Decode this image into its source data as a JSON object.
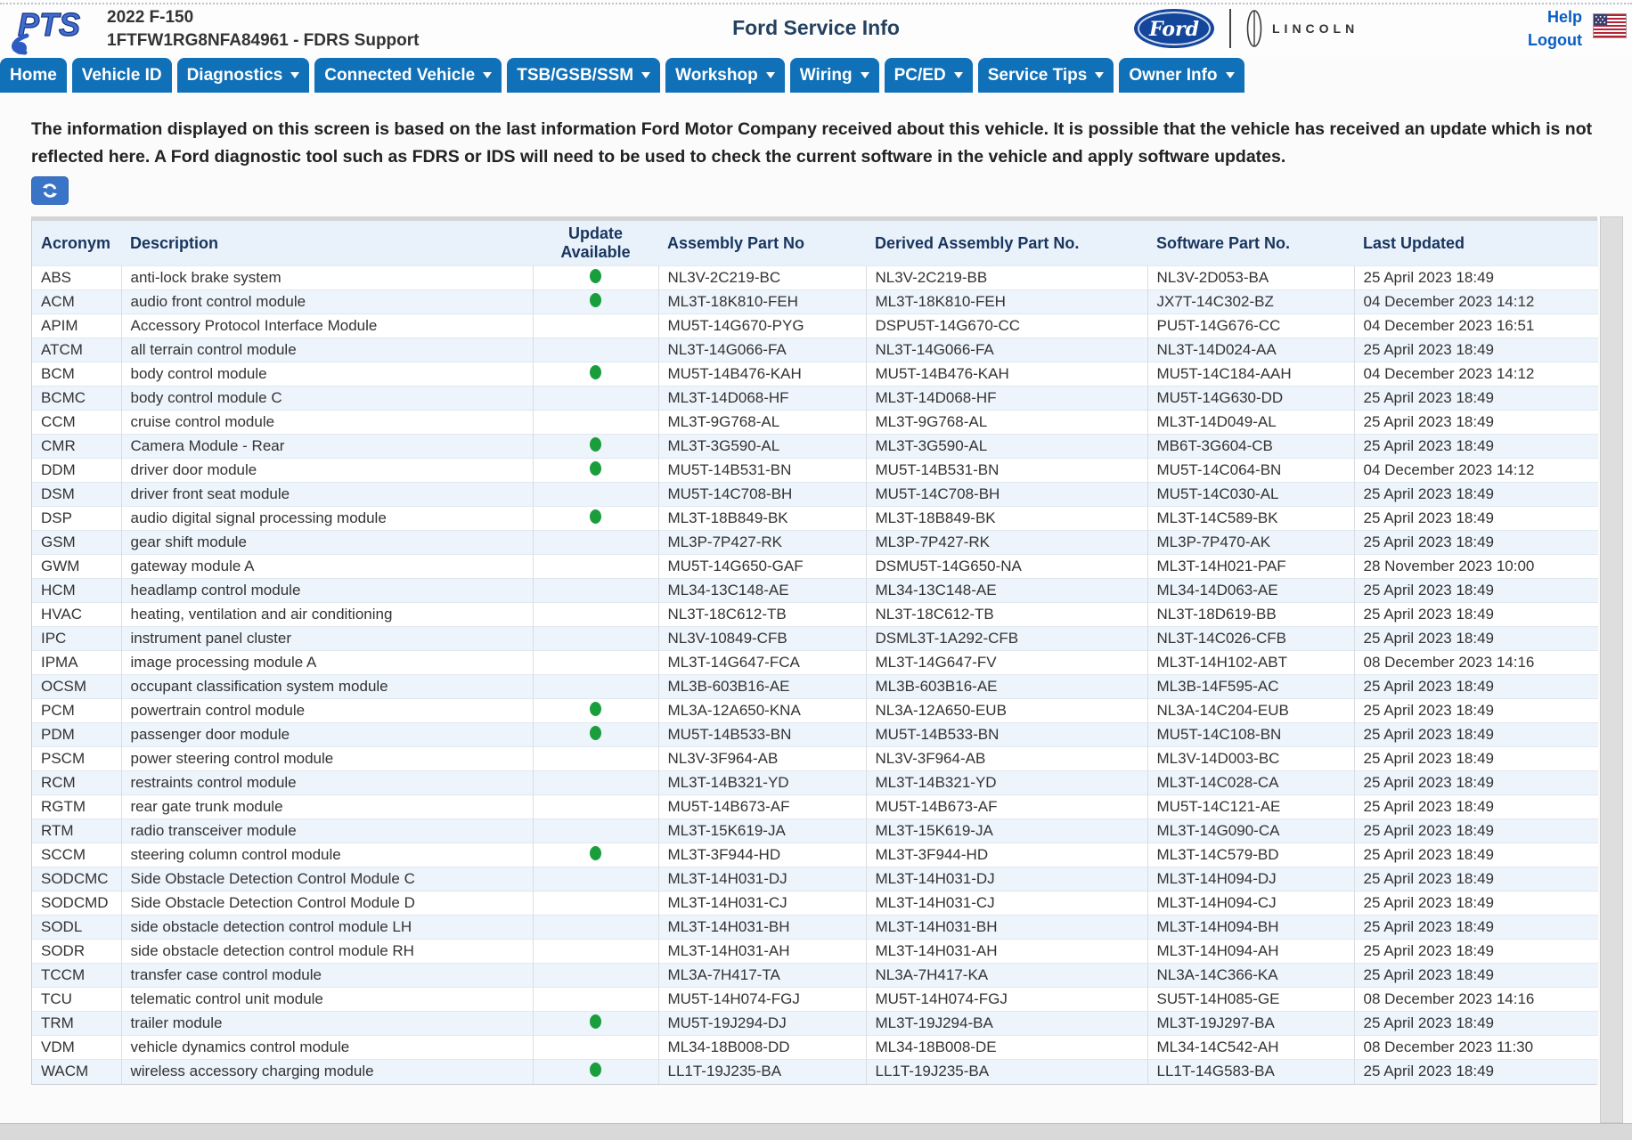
{
  "header": {
    "logo_text": "PTS",
    "vehicle_line1": "2022 F-150",
    "vehicle_line2": "1FTFW1RG8NFA84961 - FDRS Support",
    "title": "Ford Service Info",
    "ford_logo_text": "Ford",
    "lincoln_logo_text": "LINCOLN",
    "help_label": "Help",
    "logout_label": "Logout"
  },
  "nav": {
    "items": [
      {
        "label": "Home",
        "has_caret": false
      },
      {
        "label": "Vehicle ID",
        "has_caret": false
      },
      {
        "label": "Diagnostics",
        "has_caret": true
      },
      {
        "label": "Connected Vehicle",
        "has_caret": true
      },
      {
        "label": "TSB/GSB/SSM",
        "has_caret": true
      },
      {
        "label": "Workshop",
        "has_caret": true
      },
      {
        "label": "Wiring",
        "has_caret": true
      },
      {
        "label": "PC/ED",
        "has_caret": true
      },
      {
        "label": "Service Tips",
        "has_caret": true
      },
      {
        "label": "Owner Info",
        "has_caret": true
      }
    ]
  },
  "notice": {
    "text": "The information displayed on this screen is based on the last information Ford Motor Company received about this vehicle. It is possible that the vehicle has received an update which is not reflected here. A Ford diagnostic tool such as FDRS or IDS will need to be used to check the current software in the vehicle and apply software updates."
  },
  "refresh_button": {
    "icon": "refresh-icon"
  },
  "colors": {
    "nav_blue": "#1070b8",
    "link_blue": "#0a5dc2",
    "header_navy": "#18355e",
    "table_header_bg": "#e9f2fb",
    "row_alt_bg": "#edf4fb",
    "update_green": "#1a9e3c",
    "refresh_blue": "#3a74c6"
  },
  "table": {
    "columns": [
      "Acronym",
      "Description",
      "Update Available",
      "Assembly Part No",
      "Derived Assembly Part No.",
      "Software Part No.",
      "Last Updated"
    ],
    "rows": [
      {
        "acronym": "ABS",
        "description": "anti-lock brake system",
        "update_available": true,
        "assembly": "NL3V-2C219-BC",
        "derived": "NL3V-2C219-BB",
        "software": "NL3V-2D053-BA",
        "last_updated": "25 April 2023 18:49"
      },
      {
        "acronym": "ACM",
        "description": "audio front control module",
        "update_available": true,
        "assembly": "ML3T-18K810-FEH",
        "derived": "ML3T-18K810-FEH",
        "software": "JX7T-14C302-BZ",
        "last_updated": "04 December 2023 14:12"
      },
      {
        "acronym": "APIM",
        "description": "Accessory Protocol Interface Module",
        "update_available": false,
        "assembly": "MU5T-14G670-PYG",
        "derived": "DSPU5T-14G670-CC",
        "software": "PU5T-14G676-CC",
        "last_updated": "04 December 2023 16:51"
      },
      {
        "acronym": "ATCM",
        "description": "all terrain control module",
        "update_available": false,
        "assembly": "NL3T-14G066-FA",
        "derived": "NL3T-14G066-FA",
        "software": "NL3T-14D024-AA",
        "last_updated": "25 April 2023 18:49"
      },
      {
        "acronym": "BCM",
        "description": "body control module",
        "update_available": true,
        "assembly": "MU5T-14B476-KAH",
        "derived": "MU5T-14B476-KAH",
        "software": "MU5T-14C184-AAH",
        "last_updated": "04 December 2023 14:12"
      },
      {
        "acronym": "BCMC",
        "description": "body control module C",
        "update_available": false,
        "assembly": "ML3T-14D068-HF",
        "derived": "ML3T-14D068-HF",
        "software": "MU5T-14G630-DD",
        "last_updated": "25 April 2023 18:49"
      },
      {
        "acronym": "CCM",
        "description": "cruise control module",
        "update_available": false,
        "assembly": "ML3T-9G768-AL",
        "derived": "ML3T-9G768-AL",
        "software": "ML3T-14D049-AL",
        "last_updated": "25 April 2023 18:49"
      },
      {
        "acronym": "CMR",
        "description": "Camera Module - Rear",
        "update_available": true,
        "assembly": "ML3T-3G590-AL",
        "derived": "ML3T-3G590-AL",
        "software": "MB6T-3G604-CB",
        "last_updated": "25 April 2023 18:49"
      },
      {
        "acronym": "DDM",
        "description": "driver door module",
        "update_available": true,
        "assembly": "MU5T-14B531-BN",
        "derived": "MU5T-14B531-BN",
        "software": "MU5T-14C064-BN",
        "last_updated": "04 December 2023 14:12"
      },
      {
        "acronym": "DSM",
        "description": "driver front seat module",
        "update_available": false,
        "assembly": "MU5T-14C708-BH",
        "derived": "MU5T-14C708-BH",
        "software": "MU5T-14C030-AL",
        "last_updated": "25 April 2023 18:49"
      },
      {
        "acronym": "DSP",
        "description": "audio digital signal processing module",
        "update_available": true,
        "assembly": "ML3T-18B849-BK",
        "derived": "ML3T-18B849-BK",
        "software": "ML3T-14C589-BK",
        "last_updated": "25 April 2023 18:49"
      },
      {
        "acronym": "GSM",
        "description": "gear shift module",
        "update_available": false,
        "assembly": "ML3P-7P427-RK",
        "derived": "ML3P-7P427-RK",
        "software": "ML3P-7P470-AK",
        "last_updated": "25 April 2023 18:49"
      },
      {
        "acronym": "GWM",
        "description": "gateway module A",
        "update_available": false,
        "assembly": "MU5T-14G650-GAF",
        "derived": "DSMU5T-14G650-NA",
        "software": "ML3T-14H021-PAF",
        "last_updated": "28 November 2023 10:00"
      },
      {
        "acronym": "HCM",
        "description": "headlamp control module",
        "update_available": false,
        "assembly": "ML34-13C148-AE",
        "derived": "ML34-13C148-AE",
        "software": "ML34-14D063-AE",
        "last_updated": "25 April 2023 18:49"
      },
      {
        "acronym": "HVAC",
        "description": "heating, ventilation and air conditioning",
        "update_available": false,
        "assembly": "NL3T-18C612-TB",
        "derived": "NL3T-18C612-TB",
        "software": "NL3T-18D619-BB",
        "last_updated": "25 April 2023 18:49"
      },
      {
        "acronym": "IPC",
        "description": "instrument panel cluster",
        "update_available": false,
        "assembly": "NL3V-10849-CFB",
        "derived": "DSML3T-1A292-CFB",
        "software": "NL3T-14C026-CFB",
        "last_updated": "25 April 2023 18:49"
      },
      {
        "acronym": "IPMA",
        "description": "image processing module A",
        "update_available": false,
        "assembly": "ML3T-14G647-FCA",
        "derived": "ML3T-14G647-FV",
        "software": "ML3T-14H102-ABT",
        "last_updated": "08 December 2023 14:16"
      },
      {
        "acronym": "OCSM",
        "description": "occupant classification system module",
        "update_available": false,
        "assembly": "ML3B-603B16-AE",
        "derived": "ML3B-603B16-AE",
        "software": "ML3B-14F595-AC",
        "last_updated": "25 April 2023 18:49"
      },
      {
        "acronym": "PCM",
        "description": "powertrain control module",
        "update_available": true,
        "assembly": "ML3A-12A650-KNA",
        "derived": "NL3A-12A650-EUB",
        "software": "NL3A-14C204-EUB",
        "last_updated": "25 April 2023 18:49"
      },
      {
        "acronym": "PDM",
        "description": "passenger door module",
        "update_available": true,
        "assembly": "MU5T-14B533-BN",
        "derived": "MU5T-14B533-BN",
        "software": "MU5T-14C108-BN",
        "last_updated": "25 April 2023 18:49"
      },
      {
        "acronym": "PSCM",
        "description": "power steering control module",
        "update_available": false,
        "assembly": "NL3V-3F964-AB",
        "derived": "NL3V-3F964-AB",
        "software": "ML3V-14D003-BC",
        "last_updated": "25 April 2023 18:49"
      },
      {
        "acronym": "RCM",
        "description": "restraints control module",
        "update_available": false,
        "assembly": "ML3T-14B321-YD",
        "derived": "ML3T-14B321-YD",
        "software": "ML3T-14C028-CA",
        "last_updated": "25 April 2023 18:49"
      },
      {
        "acronym": "RGTM",
        "description": "rear gate trunk module",
        "update_available": false,
        "assembly": "MU5T-14B673-AF",
        "derived": "MU5T-14B673-AF",
        "software": "MU5T-14C121-AE",
        "last_updated": "25 April 2023 18:49"
      },
      {
        "acronym": "RTM",
        "description": "radio transceiver module",
        "update_available": false,
        "assembly": "ML3T-15K619-JA",
        "derived": "ML3T-15K619-JA",
        "software": "ML3T-14G090-CA",
        "last_updated": "25 April 2023 18:49"
      },
      {
        "acronym": "SCCM",
        "description": "steering column control module",
        "update_available": true,
        "assembly": "ML3T-3F944-HD",
        "derived": "ML3T-3F944-HD",
        "software": "ML3T-14C579-BD",
        "last_updated": "25 April 2023 18:49"
      },
      {
        "acronym": "SODCMC",
        "description": "Side Obstacle Detection Control Module C",
        "update_available": false,
        "assembly": "ML3T-14H031-DJ",
        "derived": "ML3T-14H031-DJ",
        "software": "ML3T-14H094-DJ",
        "last_updated": "25 April 2023 18:49"
      },
      {
        "acronym": "SODCMD",
        "description": "Side Obstacle Detection Control Module D",
        "update_available": false,
        "assembly": "ML3T-14H031-CJ",
        "derived": "ML3T-14H031-CJ",
        "software": "ML3T-14H094-CJ",
        "last_updated": "25 April 2023 18:49"
      },
      {
        "acronym": "SODL",
        "description": "side obstacle detection control module LH",
        "update_available": false,
        "assembly": "ML3T-14H031-BH",
        "derived": "ML3T-14H031-BH",
        "software": "ML3T-14H094-BH",
        "last_updated": "25 April 2023 18:49"
      },
      {
        "acronym": "SODR",
        "description": "side obstacle detection control module RH",
        "update_available": false,
        "assembly": "ML3T-14H031-AH",
        "derived": "ML3T-14H031-AH",
        "software": "ML3T-14H094-AH",
        "last_updated": "25 April 2023 18:49"
      },
      {
        "acronym": "TCCM",
        "description": "transfer case control module",
        "update_available": false,
        "assembly": "ML3A-7H417-TA",
        "derived": "NL3A-7H417-KA",
        "software": "NL3A-14C366-KA",
        "last_updated": "25 April 2023 18:49"
      },
      {
        "acronym": "TCU",
        "description": "telematic control unit module",
        "update_available": false,
        "assembly": "MU5T-14H074-FGJ",
        "derived": "MU5T-14H074-FGJ",
        "software": "SU5T-14H085-GE",
        "last_updated": "08 December 2023 14:16"
      },
      {
        "acronym": "TRM",
        "description": "trailer module",
        "update_available": true,
        "assembly": "MU5T-19J294-DJ",
        "derived": "ML3T-19J294-BA",
        "software": "ML3T-19J297-BA",
        "last_updated": "25 April 2023 18:49"
      },
      {
        "acronym": "VDM",
        "description": "vehicle dynamics control module",
        "update_available": false,
        "assembly": "ML34-18B008-DD",
        "derived": "ML34-18B008-DE",
        "software": "ML34-14C542-AH",
        "last_updated": "08 December 2023 11:30"
      },
      {
        "acronym": "WACM",
        "description": "wireless accessory charging module",
        "update_available": true,
        "assembly": "LL1T-19J235-BA",
        "derived": "LL1T-19J235-BA",
        "software": "LL1T-14G583-BA",
        "last_updated": "25 April 2023 18:49"
      }
    ]
  }
}
